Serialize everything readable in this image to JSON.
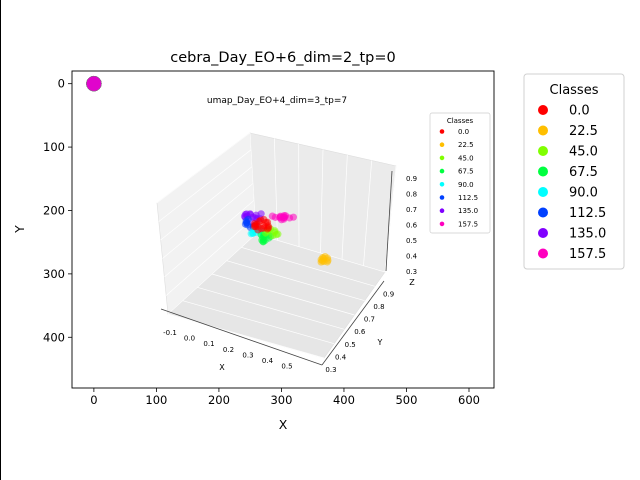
{
  "chart_data": {
    "type": "scatter",
    "title": "cebra_Day_EO+6_dim=2_tp=0",
    "xlabel": "X",
    "ylabel": "Y",
    "xlim": [
      -35,
      640
    ],
    "ylim": [
      480,
      -20
    ],
    "y_inverted": true,
    "xticks": [
      "0",
      "100",
      "200",
      "300",
      "400",
      "500",
      "600"
    ],
    "yticks": [
      "0",
      "100",
      "200",
      "300",
      "400"
    ],
    "grid": false,
    "legend": {
      "title": "Classes",
      "placement": "outside-right",
      "entries": [
        {
          "label": "0.0",
          "color": "#ff0000"
        },
        {
          "label": "22.5",
          "color": "#ffbf00"
        },
        {
          "label": "45.0",
          "color": "#80ff00"
        },
        {
          "label": "67.5",
          "color": "#00ff40"
        },
        {
          "label": "90.0",
          "color": "#00ffff"
        },
        {
          "label": "112.5",
          "color": "#0040ff"
        },
        {
          "label": "135.0",
          "color": "#8000ff"
        },
        {
          "label": "157.5",
          "color": "#ff00bf"
        }
      ]
    },
    "series": [
      {
        "name": "0.0",
        "color": "#ff0000",
        "points": [
          [
            0,
            0
          ]
        ]
      },
      {
        "name": "22.5",
        "color": "#ffbf00",
        "points": [
          [
            0,
            0
          ]
        ]
      },
      {
        "name": "45.0",
        "color": "#80ff00",
        "points": [
          [
            0,
            0
          ]
        ]
      },
      {
        "name": "67.5",
        "color": "#00ff40",
        "points": [
          [
            0,
            0
          ]
        ]
      },
      {
        "name": "90.0",
        "color": "#00ffff",
        "points": [
          [
            0,
            0
          ]
        ]
      },
      {
        "name": "112.5",
        "color": "#0040ff",
        "points": [
          [
            0,
            0
          ]
        ]
      },
      {
        "name": "135.0",
        "color": "#8000ff",
        "points": [
          [
            0,
            0
          ]
        ]
      },
      {
        "name": "157.5",
        "color": "#ff00bf",
        "points": [
          [
            0,
            0
          ]
        ]
      }
    ],
    "inset": {
      "type": "scatter3d",
      "title": "umap_Day_EO+4_dim=3_tp=7",
      "xlabel": "X",
      "ylabel": "Y",
      "zlabel": "Z",
      "xticks": [
        "-0.1",
        "0.0",
        "0.1",
        "0.2",
        "0.3",
        "0.4",
        "0.5"
      ],
      "yticks": [
        "0.3",
        "0.4",
        "0.5",
        "0.6",
        "0.7",
        "0.8",
        "0.9"
      ],
      "zticks": [
        "0.3",
        "0.4",
        "0.5",
        "0.6",
        "0.7",
        "0.8",
        "0.9"
      ],
      "legend": {
        "title": "Classes",
        "placement": "right",
        "entries": [
          "0.0",
          "22.5",
          "45.0",
          "67.5",
          "90.0",
          "112.5",
          "135.0",
          "157.5"
        ]
      }
    }
  }
}
